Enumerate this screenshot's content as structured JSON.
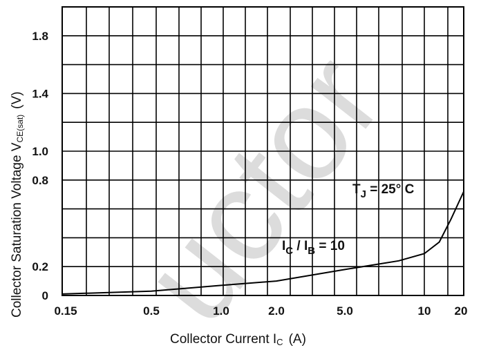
{
  "chart_data": {
    "type": "line",
    "xlabel": "Collector Current  I",
    "xlabel_sub": "C",
    "xlabel_unit": "(A)",
    "ylabel": "Collector Saturation Voltage  V",
    "ylabel_sub": "CE(sat)",
    "ylabel_unit": "(V)",
    "x_ticks": [
      "0.15",
      "0.5",
      "1.0",
      "2.0",
      "5.0",
      "10",
      "20"
    ],
    "y_ticks": [
      "0",
      "0.2",
      "0.8",
      "1.0",
      "1.4",
      "1.8"
    ],
    "y_tick_values": [
      0,
      0.2,
      0.8,
      1.0,
      1.4,
      1.8
    ],
    "ylim": [
      0,
      2.0
    ],
    "grid": true,
    "annotations": [
      {
        "main": "T",
        "sub": "J",
        "rest": " = 25° C"
      },
      {
        "main": "I",
        "sub": "C",
        "mid": " / I",
        "sub2": "B",
        "rest": " = 10"
      }
    ],
    "series": [
      {
        "x": [
          0.15,
          0.5,
          1.0,
          2.0,
          5.0,
          8.0,
          10,
          13,
          16,
          20
        ],
        "y": [
          0.01,
          0.03,
          0.07,
          0.1,
          0.18,
          0.24,
          0.29,
          0.37,
          0.53,
          0.72
        ]
      }
    ]
  },
  "watermark": "uctor"
}
